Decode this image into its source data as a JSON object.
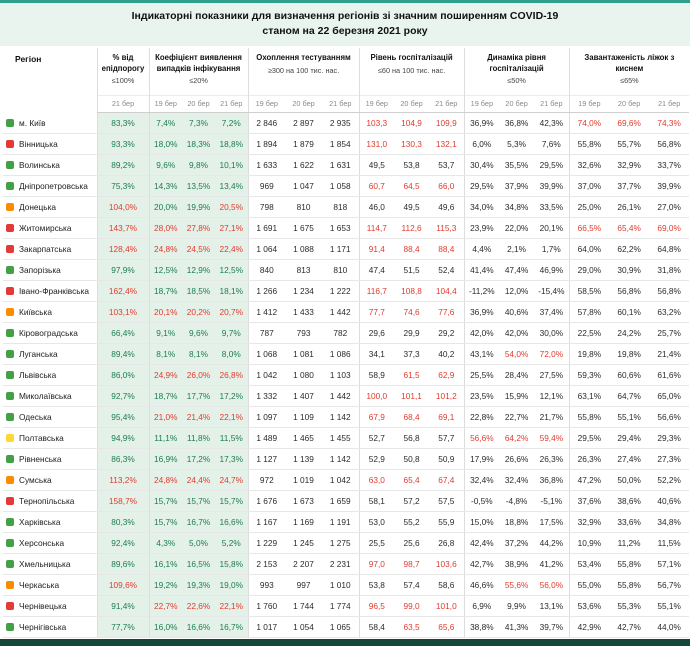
{
  "title": {
    "line1": "Індикаторні показники для визначення регіонів зі значним поширенням COVID-19",
    "line2": "станом на 22 березня 2021 року"
  },
  "columns": [
    {
      "id": "region",
      "label": "Регіон"
    },
    {
      "id": "epid",
      "label": "% від епідпорогу",
      "threshold": "≤100%",
      "dates": [
        "21 бер"
      ],
      "dir": "max",
      "limit": 100,
      "green": true
    },
    {
      "id": "detect",
      "label": "Коефіцієнт виявлення випадків інфікування",
      "threshold": "≤20%",
      "dates": [
        "19 бер",
        "20 бер",
        "21 бер"
      ],
      "dir": "max",
      "limit": 20,
      "green": true
    },
    {
      "id": "test",
      "label": "Охоплення тестуванням",
      "threshold": "≥300 на 100 тис. нас.",
      "dates": [
        "19 бер",
        "20 бер",
        "21 бер"
      ],
      "dir": "min",
      "limit": 300,
      "green": false
    },
    {
      "id": "hosp",
      "label": "Рівень госпіталізацій",
      "threshold": "≤60 на 100 тис. нас.",
      "dates": [
        "19 бер",
        "20 бер",
        "21 бер"
      ],
      "dir": "max",
      "limit": 60,
      "green": false
    },
    {
      "id": "dyn",
      "label": "Динаміка рівня госпіталізацій",
      "threshold": "≤50%",
      "dates": [
        "19 бер",
        "20 бер",
        "21 бер"
      ],
      "dir": "max",
      "limit": 50,
      "green": false
    },
    {
      "id": "beds",
      "label": "Завантаженість ліжок з киснем",
      "threshold": "≤65%",
      "dates": [
        "19 бер",
        "20 бер",
        "21 бер"
      ],
      "dir": "max",
      "limit": 65,
      "green": false
    }
  ],
  "rows": [
    {
      "region": "м. Київ",
      "indicator": "green",
      "epid": [
        "83,3%"
      ],
      "detect": [
        "7,4%",
        "7,3%",
        "7,2%"
      ],
      "test": [
        "2 846",
        "2 897",
        "2 935"
      ],
      "hosp": [
        "103,3",
        "104,9",
        "109,9"
      ],
      "dyn": [
        "36,9%",
        "36,8%",
        "42,3%"
      ],
      "beds": [
        "74,0%",
        "69,6%",
        "74,3%"
      ]
    },
    {
      "region": "Вінницька",
      "indicator": "red",
      "epid": [
        "93,3%"
      ],
      "detect": [
        "18,0%",
        "18,3%",
        "18,8%"
      ],
      "test": [
        "1 894",
        "1 879",
        "1 854"
      ],
      "hosp": [
        "131,0",
        "130,3",
        "132,1"
      ],
      "dyn": [
        "6,0%",
        "5,3%",
        "7,6%"
      ],
      "beds": [
        "55,8%",
        "55,7%",
        "56,8%"
      ]
    },
    {
      "region": "Волинська",
      "indicator": "green",
      "epid": [
        "89,2%"
      ],
      "detect": [
        "9,6%",
        "9,8%",
        "10,1%"
      ],
      "test": [
        "1 633",
        "1 622",
        "1 631"
      ],
      "hosp": [
        "49,5",
        "53,8",
        "53,7"
      ],
      "dyn": [
        "30,4%",
        "35,5%",
        "29,5%"
      ],
      "beds": [
        "32,6%",
        "32,9%",
        "33,7%"
      ]
    },
    {
      "region": "Дніпропетровська",
      "indicator": "green",
      "epid": [
        "75,3%"
      ],
      "detect": [
        "14,3%",
        "13,5%",
        "13,4%"
      ],
      "test": [
        "969",
        "1 047",
        "1 058"
      ],
      "hosp": [
        "60,7",
        "64,5",
        "66,0"
      ],
      "dyn": [
        "29,5%",
        "37,9%",
        "39,9%"
      ],
      "beds": [
        "37,0%",
        "37,7%",
        "39,9%"
      ]
    },
    {
      "region": "Донецька",
      "indicator": "orange",
      "epid": [
        "104,0%"
      ],
      "detect": [
        "20,0%",
        "19,9%",
        "20,5%"
      ],
      "test": [
        "798",
        "810",
        "818"
      ],
      "hosp": [
        "46,0",
        "49,5",
        "49,6"
      ],
      "dyn": [
        "34,0%",
        "34,8%",
        "33,5%"
      ],
      "beds": [
        "25,0%",
        "26,1%",
        "27,0%"
      ]
    },
    {
      "region": "Житомирська",
      "indicator": "red",
      "epid": [
        "143,7%"
      ],
      "detect": [
        "28,0%",
        "27,8%",
        "27,1%"
      ],
      "test": [
        "1 691",
        "1 675",
        "1 653"
      ],
      "hosp": [
        "114,7",
        "112,6",
        "115,3"
      ],
      "dyn": [
        "23,9%",
        "22,0%",
        "20,1%"
      ],
      "beds": [
        "66,5%",
        "65,4%",
        "69,0%"
      ]
    },
    {
      "region": "Закарпатська",
      "indicator": "red",
      "epid": [
        "128,4%"
      ],
      "detect": [
        "24,8%",
        "24,5%",
        "22,4%"
      ],
      "test": [
        "1 064",
        "1 088",
        "1 171"
      ],
      "hosp": [
        "91,4",
        "88,4",
        "88,4"
      ],
      "dyn": [
        "4,4%",
        "2,1%",
        "1,7%"
      ],
      "beds": [
        "64,0%",
        "62,2%",
        "64,8%"
      ]
    },
    {
      "region": "Запорізька",
      "indicator": "green",
      "epid": [
        "97,9%"
      ],
      "detect": [
        "12,5%",
        "12,9%",
        "12,5%"
      ],
      "test": [
        "840",
        "813",
        "810"
      ],
      "hosp": [
        "47,4",
        "51,5",
        "52,4"
      ],
      "dyn": [
        "41,4%",
        "47,4%",
        "46,9%"
      ],
      "beds": [
        "29,0%",
        "30,9%",
        "31,8%"
      ]
    },
    {
      "region": "Івано-Франківська",
      "indicator": "red",
      "epid": [
        "162,4%"
      ],
      "detect": [
        "18,7%",
        "18,5%",
        "18,1%"
      ],
      "test": [
        "1 266",
        "1 234",
        "1 222"
      ],
      "hosp": [
        "116,7",
        "108,8",
        "104,4"
      ],
      "dyn": [
        "-11,2%",
        "12,0%",
        "-15,4%"
      ],
      "beds": [
        "58,5%",
        "56,8%",
        "56,8%"
      ]
    },
    {
      "region": "Київська",
      "indicator": "orange",
      "epid": [
        "103,1%"
      ],
      "detect": [
        "20,1%",
        "20,2%",
        "20,7%"
      ],
      "test": [
        "1 412",
        "1 433",
        "1 442"
      ],
      "hosp": [
        "77,7",
        "74,6",
        "77,6"
      ],
      "dyn": [
        "36,9%",
        "40,6%",
        "37,4%"
      ],
      "beds": [
        "57,8%",
        "60,1%",
        "63,2%"
      ]
    },
    {
      "region": "Кіровоградська",
      "indicator": "green",
      "epid": [
        "66,4%"
      ],
      "detect": [
        "9,1%",
        "9,6%",
        "9,7%"
      ],
      "test": [
        "787",
        "793",
        "782"
      ],
      "hosp": [
        "29,6",
        "29,9",
        "29,2"
      ],
      "dyn": [
        "42,0%",
        "42,0%",
        "30,0%"
      ],
      "beds": [
        "22,5%",
        "24,2%",
        "25,7%"
      ]
    },
    {
      "region": "Луганська",
      "indicator": "green",
      "epid": [
        "89,4%"
      ],
      "detect": [
        "8,1%",
        "8,1%",
        "8,0%"
      ],
      "test": [
        "1 068",
        "1 081",
        "1 086"
      ],
      "hosp": [
        "34,1",
        "37,3",
        "40,2"
      ],
      "dyn": [
        "43,1%",
        "54,0%",
        "72,0%"
      ],
      "beds": [
        "19,8%",
        "19,8%",
        "21,4%"
      ]
    },
    {
      "region": "Львівська",
      "indicator": "green",
      "epid": [
        "86,0%"
      ],
      "detect": [
        "24,9%",
        "26,0%",
        "26,8%"
      ],
      "test": [
        "1 042",
        "1 080",
        "1 103"
      ],
      "hosp": [
        "58,9",
        "61,5",
        "62,9"
      ],
      "dyn": [
        "25,5%",
        "28,4%",
        "27,5%"
      ],
      "beds": [
        "59,3%",
        "60,6%",
        "61,6%"
      ]
    },
    {
      "region": "Миколаївська",
      "indicator": "green",
      "epid": [
        "92,7%"
      ],
      "detect": [
        "18,7%",
        "17,7%",
        "17,2%"
      ],
      "test": [
        "1 332",
        "1 407",
        "1 442"
      ],
      "hosp": [
        "100,0",
        "101,1",
        "101,2"
      ],
      "dyn": [
        "23,5%",
        "15,9%",
        "12,1%"
      ],
      "beds": [
        "63,1%",
        "64,7%",
        "65,0%"
      ]
    },
    {
      "region": "Одеська",
      "indicator": "green",
      "epid": [
        "95,4%"
      ],
      "detect": [
        "21,0%",
        "21,4%",
        "22,1%"
      ],
      "test": [
        "1 097",
        "1 109",
        "1 142"
      ],
      "hosp": [
        "67,9",
        "68,4",
        "69,1"
      ],
      "dyn": [
        "22,8%",
        "22,7%",
        "21,7%"
      ],
      "beds": [
        "55,8%",
        "55,1%",
        "56,6%"
      ]
    },
    {
      "region": "Полтавська",
      "indicator": "yellow",
      "epid": [
        "94,9%"
      ],
      "detect": [
        "11,1%",
        "11,8%",
        "11,5%"
      ],
      "test": [
        "1 489",
        "1 465",
        "1 455"
      ],
      "hosp": [
        "52,7",
        "56,8",
        "57,7"
      ],
      "dyn": [
        "56,6%",
        "64,2%",
        "59,4%"
      ],
      "beds": [
        "29,5%",
        "29,4%",
        "29,3%"
      ]
    },
    {
      "region": "Рівненська",
      "indicator": "green",
      "epid": [
        "86,3%"
      ],
      "detect": [
        "16,9%",
        "17,2%",
        "17,3%"
      ],
      "test": [
        "1 127",
        "1 139",
        "1 142"
      ],
      "hosp": [
        "52,9",
        "50,8",
        "50,9"
      ],
      "dyn": [
        "17,9%",
        "26,6%",
        "26,3%"
      ],
      "beds": [
        "26,3%",
        "27,4%",
        "27,3%"
      ]
    },
    {
      "region": "Сумська",
      "indicator": "orange",
      "epid": [
        "113,2%"
      ],
      "detect": [
        "24,8%",
        "24,4%",
        "24,7%"
      ],
      "test": [
        "972",
        "1 019",
        "1 042"
      ],
      "hosp": [
        "63,0",
        "65,4",
        "67,4"
      ],
      "dyn": [
        "32,4%",
        "32,4%",
        "36,8%"
      ],
      "beds": [
        "47,2%",
        "50,0%",
        "52,2%"
      ]
    },
    {
      "region": "Тернопільська",
      "indicator": "red",
      "epid": [
        "158,7%"
      ],
      "detect": [
        "15,7%",
        "15,7%",
        "15,7%"
      ],
      "test": [
        "1 676",
        "1 673",
        "1 659"
      ],
      "hosp": [
        "58,1",
        "57,2",
        "57,5"
      ],
      "dyn": [
        "-0,5%",
        "-4,8%",
        "-5,1%"
      ],
      "beds": [
        "37,6%",
        "38,6%",
        "40,6%"
      ]
    },
    {
      "region": "Харківська",
      "indicator": "green",
      "epid": [
        "80,3%"
      ],
      "detect": [
        "15,7%",
        "16,7%",
        "16,6%"
      ],
      "test": [
        "1 167",
        "1 169",
        "1 191"
      ],
      "hosp": [
        "53,0",
        "55,2",
        "55,9"
      ],
      "dyn": [
        "15,0%",
        "18,8%",
        "17,5%"
      ],
      "beds": [
        "32,9%",
        "33,6%",
        "34,8%"
      ]
    },
    {
      "region": "Херсонська",
      "indicator": "green",
      "epid": [
        "92,4%"
      ],
      "detect": [
        "4,3%",
        "5,0%",
        "5,2%"
      ],
      "test": [
        "1 229",
        "1 245",
        "1 275"
      ],
      "hosp": [
        "25,5",
        "25,6",
        "26,8"
      ],
      "dyn": [
        "42,4%",
        "37,2%",
        "44,2%"
      ],
      "beds": [
        "10,9%",
        "11,2%",
        "11,5%"
      ]
    },
    {
      "region": "Хмельницька",
      "indicator": "green",
      "epid": [
        "89,6%"
      ],
      "detect": [
        "16,1%",
        "16,5%",
        "15,8%"
      ],
      "test": [
        "2 153",
        "2 207",
        "2 231"
      ],
      "hosp": [
        "97,0",
        "98,7",
        "103,6"
      ],
      "dyn": [
        "42,7%",
        "38,9%",
        "41,2%"
      ],
      "beds": [
        "53,4%",
        "55,8%",
        "57,1%"
      ]
    },
    {
      "region": "Черкаська",
      "indicator": "orange",
      "epid": [
        "109,6%"
      ],
      "detect": [
        "19,2%",
        "19,3%",
        "19,0%"
      ],
      "test": [
        "993",
        "997",
        "1 010"
      ],
      "hosp": [
        "53,8",
        "57,4",
        "58,6"
      ],
      "dyn": [
        "46,6%",
        "55,6%",
        "56,0%"
      ],
      "beds": [
        "55,0%",
        "55,8%",
        "56,7%"
      ]
    },
    {
      "region": "Чернівецька",
      "indicator": "red",
      "epid": [
        "91,4%"
      ],
      "detect": [
        "22,7%",
        "22,6%",
        "22,1%"
      ],
      "test": [
        "1 760",
        "1 744",
        "1 774"
      ],
      "hosp": [
        "96,5",
        "99,0",
        "101,0"
      ],
      "dyn": [
        "6,9%",
        "9,9%",
        "13,1%"
      ],
      "beds": [
        "53,6%",
        "55,3%",
        "55,1%"
      ]
    },
    {
      "region": "Чернігівська",
      "indicator": "green",
      "epid": [
        "77,7%"
      ],
      "detect": [
        "16,0%",
        "16,6%",
        "16,7%"
      ],
      "test": [
        "1 017",
        "1 054",
        "1 065"
      ],
      "hosp": [
        "58,4",
        "63,5",
        "65,6"
      ],
      "dyn": [
        "38,8%",
        "41,3%",
        "39,7%"
      ],
      "beds": [
        "42,9%",
        "42,7%",
        "44,0%"
      ]
    }
  ],
  "colors": {
    "accent_teal": "#2fa08c",
    "title_bg": "#e9f4ef",
    "bottom_bar": "#15463c",
    "cell_green_bg": "#e4f1e9",
    "pass_green": "#1b7d4f",
    "fail_red": "#e23b2e",
    "text_dark": "#2b2b2b",
    "date_gray": "#8a8a8a",
    "indicator": {
      "green": "#43a047",
      "orange": "#fb8c00",
      "red": "#e53935",
      "yellow": "#fdd835"
    }
  }
}
